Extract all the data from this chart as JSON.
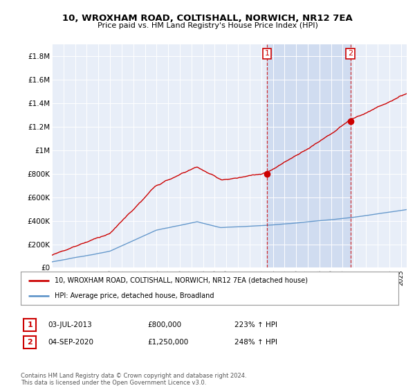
{
  "title": "10, WROXHAM ROAD, COLTISHALL, NORWICH, NR12 7EA",
  "subtitle": "Price paid vs. HM Land Registry's House Price Index (HPI)",
  "ylabel_ticks": [
    "£0",
    "£200K",
    "£400K",
    "£600K",
    "£800K",
    "£1M",
    "£1.2M",
    "£1.4M",
    "£1.6M",
    "£1.8M"
  ],
  "ytick_values": [
    0,
    200000,
    400000,
    600000,
    800000,
    1000000,
    1200000,
    1400000,
    1600000,
    1800000
  ],
  "ylim": [
    0,
    1900000
  ],
  "hpi_color": "#6699cc",
  "price_color": "#cc0000",
  "legend_label_price": "10, WROXHAM ROAD, COLTISHALL, NORWICH, NR12 7EA (detached house)",
  "legend_label_hpi": "HPI: Average price, detached house, Broadland",
  "transaction1_date": "03-JUL-2013",
  "transaction1_price": "£800,000",
  "transaction1_hpi": "223% ↑ HPI",
  "transaction1_year": 2013.5,
  "transaction1_value": 800000,
  "transaction2_date": "04-SEP-2020",
  "transaction2_price": "£1,250,000",
  "transaction2_hpi": "248% ↑ HPI",
  "transaction2_year": 2020.67,
  "transaction2_value": 1250000,
  "footer": "Contains HM Land Registry data © Crown copyright and database right 2024.\nThis data is licensed under the Open Government Licence v3.0.",
  "xmin": 1995,
  "xmax": 2025.5,
  "background_color": "#ffffff",
  "plot_bg_color": "#e8eef8",
  "shade_color": "#d0dcf0"
}
